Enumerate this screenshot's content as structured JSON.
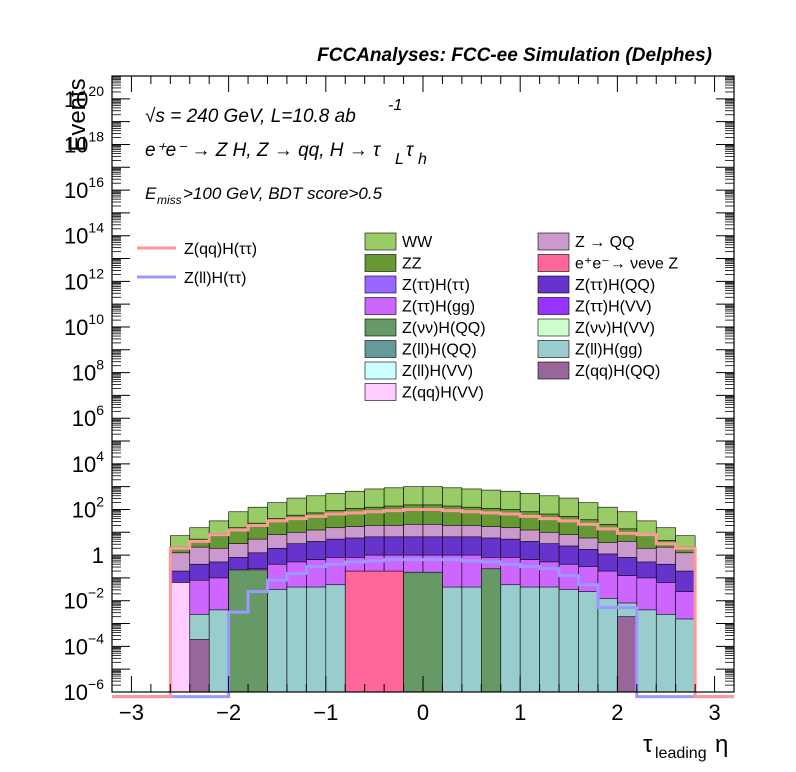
{
  "chart_data": {
    "type": "area",
    "title": "FCCAnalyses: FCC-ee Simulation (Delphes)",
    "xlabel_main": "τ",
    "xlabel_sub": "leading",
    "xlabel_tail": "η",
    "ylabel": "Events",
    "log_y": true,
    "xlim": [
      -3.2,
      3.2
    ],
    "ylim_exp": [
      -6,
      21
    ],
    "x_ticks": [
      {
        "v": -3,
        "label": "−3"
      },
      {
        "v": -2,
        "label": "−2"
      },
      {
        "v": -1,
        "label": "−1"
      },
      {
        "v": 0,
        "label": "0"
      },
      {
        "v": 1,
        "label": "1"
      },
      {
        "v": 2,
        "label": "2"
      },
      {
        "v": 3,
        "label": "3"
      }
    ],
    "y_ticks": [
      {
        "e": -6,
        "base": "10",
        "sup": "−6"
      },
      {
        "e": -4,
        "base": "10",
        "sup": "−4"
      },
      {
        "e": -2,
        "base": "10",
        "sup": "−2"
      },
      {
        "e": 0,
        "base": "1",
        "sup": ""
      },
      {
        "e": 2,
        "base": "10",
        "sup": "2"
      },
      {
        "e": 4,
        "base": "10",
        "sup": "4"
      },
      {
        "e": 6,
        "base": "10",
        "sup": "6"
      },
      {
        "e": 8,
        "base": "10",
        "sup": "8"
      },
      {
        "e": 10,
        "base": "10",
        "sup": "10"
      },
      {
        "e": 12,
        "base": "10",
        "sup": "12"
      },
      {
        "e": 14,
        "base": "10",
        "sup": "14"
      },
      {
        "e": 16,
        "base": "10",
        "sup": "16"
      },
      {
        "e": 18,
        "base": "10",
        "sup": "18"
      },
      {
        "e": 20,
        "base": "10",
        "sup": "20"
      }
    ],
    "bin_edges": [
      -3.2,
      -3.0,
      -2.8,
      -2.6,
      -2.4,
      -2.2,
      -2.0,
      -1.8,
      -1.6,
      -1.4,
      -1.2,
      -1.0,
      -0.8,
      -0.6,
      -0.4,
      -0.2,
      0.0,
      0.2,
      0.4,
      0.6,
      0.8,
      1.0,
      1.2,
      1.4,
      1.6,
      1.8,
      2.0,
      2.2,
      2.4,
      2.6,
      2.8,
      3.0,
      3.2
    ],
    "stack_log10": {
      "WW": [
        -6.2,
        -6.2,
        -6.2,
        0.85,
        1.2,
        1.5,
        1.9,
        2.1,
        2.3,
        2.5,
        2.6,
        2.7,
        2.8,
        2.9,
        2.95,
        3.0,
        3.0,
        2.95,
        2.9,
        2.85,
        2.8,
        2.7,
        2.6,
        2.5,
        2.3,
        2.1,
        1.9,
        1.5,
        1.2,
        0.85,
        -6.2,
        -6.2
      ],
      "ZZ": [
        -6.2,
        -6.2,
        -6.2,
        0.35,
        0.7,
        0.95,
        1.2,
        1.4,
        1.6,
        1.75,
        1.85,
        1.95,
        2.05,
        2.1,
        2.15,
        2.2,
        2.2,
        2.15,
        2.1,
        2.05,
        2.0,
        1.9,
        1.8,
        1.7,
        1.55,
        1.35,
        1.15,
        0.9,
        0.65,
        0.35,
        -6.2,
        -6.2
      ],
      "ZQQ": [
        -6.2,
        -6.2,
        -6.2,
        0.1,
        0.35,
        0.3,
        0.5,
        0.7,
        0.9,
        1.0,
        1.1,
        1.2,
        1.25,
        1.3,
        1.3,
        1.35,
        1.35,
        1.3,
        1.3,
        1.25,
        1.2,
        1.1,
        1.0,
        0.9,
        0.75,
        0.55,
        0.6,
        0.3,
        0.35,
        0.1,
        -6.2,
        -6.2
      ],
      "Htautau": [
        -6.2,
        -6.2,
        -6.2,
        -0.7,
        -0.4,
        -0.3,
        -0.1,
        0.1,
        0.3,
        0.5,
        0.6,
        0.7,
        0.75,
        0.8,
        0.8,
        0.8,
        0.8,
        0.8,
        0.8,
        0.75,
        0.7,
        0.6,
        0.5,
        0.4,
        0.25,
        0.05,
        -0.1,
        -0.3,
        -0.4,
        -0.7,
        -6.2,
        -6.2
      ],
      "Hgg": [
        -6.2,
        -6.2,
        -6.2,
        -1.6,
        -1.1,
        -1.0,
        -0.8,
        -0.6,
        -0.4,
        -0.3,
        -0.2,
        -0.1,
        -0.1,
        0.0,
        0.0,
        0.0,
        0.0,
        0.0,
        0.0,
        -0.1,
        -0.1,
        -0.2,
        -0.3,
        -0.4,
        -0.5,
        -0.7,
        -0.9,
        -1.0,
        -1.2,
        -1.6,
        -6.2,
        -6.2
      ],
      "llgg": [
        -6.2,
        -6.2,
        -6.2,
        -2.8,
        -2.6,
        -2.4,
        -2.1,
        -1.6,
        -1.5,
        -1.4,
        -1.4,
        -1.3,
        -1.3,
        -1.4,
        -1.4,
        -1.3,
        -1.3,
        -1.4,
        -1.4,
        -1.3,
        -1.3,
        -1.4,
        -1.4,
        -1.5,
        -1.6,
        -1.9,
        -2.1,
        -2.4,
        -2.6,
        -2.8,
        -6.2,
        -6.2
      ]
    },
    "pink_bins": {
      "x0": -0.8,
      "x1": -0.2,
      "log10": -0.7
    },
    "green_bins": [
      {
        "x0": -2.0,
        "x1": -1.6,
        "log10": -0.65
      },
      {
        "x0": -0.2,
        "x1": 0.2,
        "log10": -0.75
      },
      {
        "x0": 0.6,
        "x1": 0.8,
        "log10": -0.6
      }
    ],
    "purple_bins": [
      {
        "x0": -2.4,
        "x1": -2.2,
        "log10": -3.7
      },
      {
        "x0": 2.0,
        "x1": 2.2,
        "log10": -2.7
      }
    ],
    "lightpink_bins": [
      {
        "x0": -2.6,
        "x1": -2.4,
        "log10": -1.2
      }
    ],
    "signal_qq": [
      -6.2,
      -6.2,
      -6.2,
      0.3,
      0.6,
      0.9,
      1.1,
      1.3,
      1.5,
      1.6,
      1.7,
      1.8,
      1.85,
      1.9,
      1.95,
      2.0,
      2.0,
      1.95,
      1.9,
      1.85,
      1.8,
      1.7,
      1.6,
      1.5,
      1.35,
      1.15,
      0.95,
      0.9,
      0.5,
      0.3,
      -6.2,
      -6.2
    ],
    "signal_ll": [
      -6.2,
      -6.2,
      -6.2,
      -6.2,
      -6.2,
      -6.2,
      -2.5,
      -1.6,
      -1.1,
      -0.8,
      -0.5,
      -0.4,
      -0.3,
      -0.25,
      -0.2,
      -0.2,
      -0.2,
      -0.2,
      -0.25,
      -0.3,
      -0.4,
      -0.5,
      -0.6,
      -0.9,
      -1.3,
      -2.3,
      -2.3,
      -6.2,
      -6.2,
      -6.2,
      -6.2,
      -6.2
    ],
    "annotations": {
      "energy": "√s = 240 GeV, L=10.8 ab",
      "energy_sup": "-1",
      "process": "e⁺e⁻ → Z H, Z → qq, H → τ",
      "process_sub1": "L",
      "process_tau": "τ",
      "process_sub2": "h",
      "cuts": "E",
      "cuts_sub": "miss",
      "cuts_tail": ">100 GeV, BDT score>0.5"
    },
    "legend_signal": [
      {
        "name": "Z(qq)H(ττ)",
        "color": "#ff9999"
      },
      {
        "name": "Z(ll)H(ττ)",
        "color": "#9999ff"
      }
    ],
    "legend_bkg": [
      {
        "name": "WW",
        "color": "#99cc66"
      },
      {
        "name": "Z → QQ",
        "color": "#cc99cc"
      },
      {
        "name": "ZZ",
        "color": "#669933"
      },
      {
        "name": "e⁺e⁻→ νeνe Z",
        "color": "#ff6699"
      },
      {
        "name": "Z(ττ)H(ττ)",
        "color": "#9966ff"
      },
      {
        "name": "Z(ττ)H(QQ)",
        "color": "#6633cc"
      },
      {
        "name": "Z(ττ)H(gg)",
        "color": "#cc66ff"
      },
      {
        "name": "Z(ττ)H(VV)",
        "color": "#9933ff"
      },
      {
        "name": "Z(νν)H(QQ)",
        "color": "#669966"
      },
      {
        "name": "Z(νν)H(VV)",
        "color": "#ccffcc"
      },
      {
        "name": "Z(ll)H(QQ)",
        "color": "#669999"
      },
      {
        "name": "Z(ll)H(gg)",
        "color": "#99cccc"
      },
      {
        "name": "Z(ll)H(VV)",
        "color": "#ccffff"
      },
      {
        "name": "Z(qq)H(QQ)",
        "color": "#996699"
      },
      {
        "name": "Z(qq)H(VV)",
        "color": "#ffccff"
      }
    ]
  }
}
